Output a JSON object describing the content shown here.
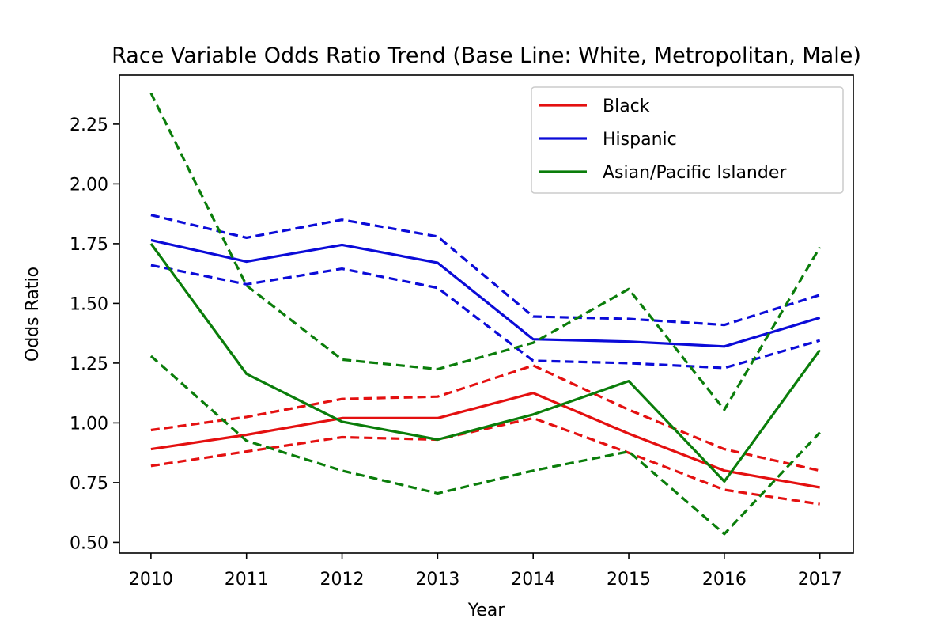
{
  "chart_data": {
    "type": "line",
    "title": "Race Variable Odds Ratio Trend (Base Line: White, Metropolitan, Male)",
    "xlabel": "Year",
    "ylabel": "Odds Ratio",
    "x": [
      2010,
      2011,
      2012,
      2013,
      2014,
      2015,
      2016,
      2017
    ],
    "x_ticks": [
      "2010",
      "2011",
      "2012",
      "2013",
      "2014",
      "2015",
      "2016",
      "2017"
    ],
    "y_ticks": [
      "0.50",
      "0.75",
      "1.00",
      "1.25",
      "1.50",
      "1.75",
      "2.00",
      "2.25"
    ],
    "xlim": [
      2009.67,
      2017.35
    ],
    "ylim": [
      0.455,
      2.455
    ],
    "grid": false,
    "legend_position": "top-right",
    "series": [
      {
        "name": "Black",
        "color": "#e41010",
        "values": [
          0.89,
          0.95,
          1.02,
          1.02,
          1.125,
          0.955,
          0.8,
          0.73
        ],
        "ci_upper": [
          0.97,
          1.025,
          1.1,
          1.11,
          1.24,
          1.055,
          0.89,
          0.8
        ],
        "ci_lower": [
          0.82,
          0.88,
          0.94,
          0.93,
          1.02,
          0.875,
          0.72,
          0.66
        ]
      },
      {
        "name": "Hispanic",
        "color": "#0b0bd8",
        "values": [
          1.765,
          1.675,
          1.745,
          1.67,
          1.35,
          1.34,
          1.32,
          1.44
        ],
        "ci_upper": [
          1.87,
          1.775,
          1.85,
          1.78,
          1.445,
          1.435,
          1.41,
          1.535
        ],
        "ci_lower": [
          1.66,
          1.58,
          1.645,
          1.565,
          1.26,
          1.25,
          1.23,
          1.345
        ]
      },
      {
        "name": "Asian/Pacific Islander",
        "color": "#0a7d0a",
        "values": [
          1.75,
          1.205,
          1.005,
          0.93,
          1.035,
          1.175,
          0.755,
          1.305
        ],
        "ci_upper": [
          2.38,
          1.575,
          1.265,
          1.225,
          1.335,
          1.56,
          1.055,
          1.735
        ],
        "ci_lower": [
          1.28,
          0.925,
          0.8,
          0.705,
          0.8,
          0.88,
          0.535,
          0.96
        ]
      }
    ]
  }
}
